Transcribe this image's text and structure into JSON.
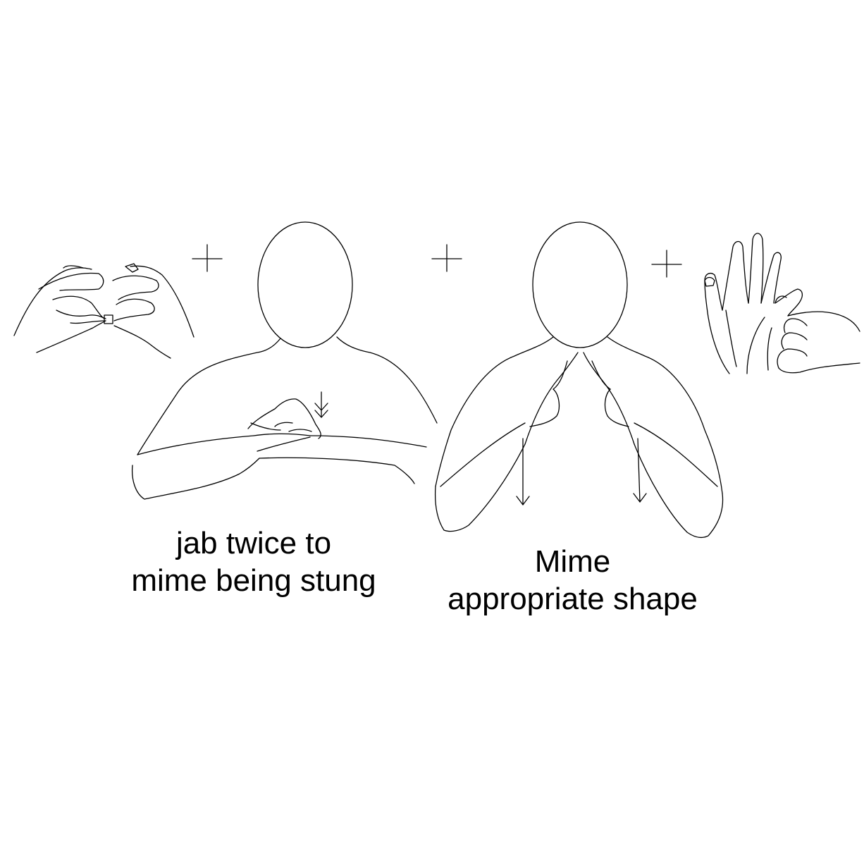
{
  "figure": {
    "symbols": {
      "plus": "+"
    },
    "captions": [
      {
        "lines": [
          "jab twice to",
          "mime being stung"
        ]
      },
      {
        "lines": [
          "Mime",
          "appropriate shape"
        ]
      }
    ],
    "colors": {
      "ink": "#000000",
      "background": "#ffffff"
    }
  }
}
